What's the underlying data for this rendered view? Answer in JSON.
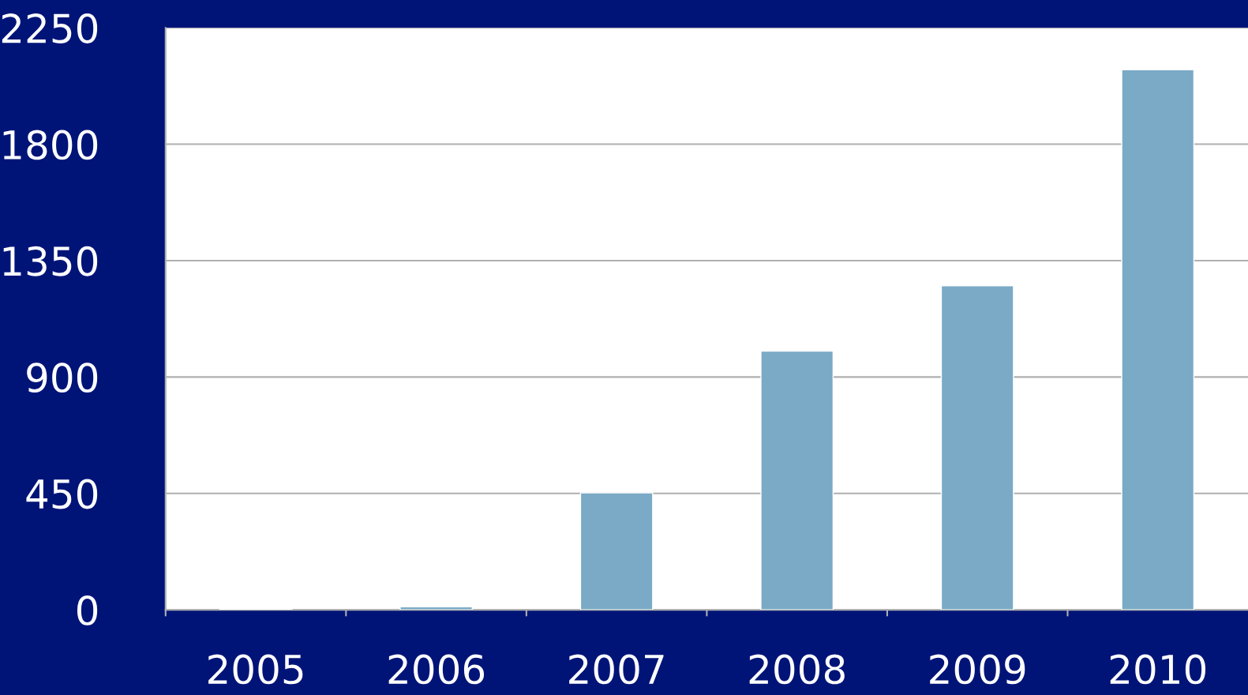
{
  "chart_data": {
    "type": "bar",
    "categories": [
      "2005",
      "2006",
      "2007",
      "2008",
      "2009",
      "2010"
    ],
    "values": [
      3,
      12,
      452,
      1000,
      1253,
      2088
    ],
    "color": "#7aaac6",
    "ylim": [
      0,
      2250
    ],
    "yticks": [
      0,
      450,
      900,
      1350,
      1800,
      2250
    ],
    "grid": "y"
  }
}
